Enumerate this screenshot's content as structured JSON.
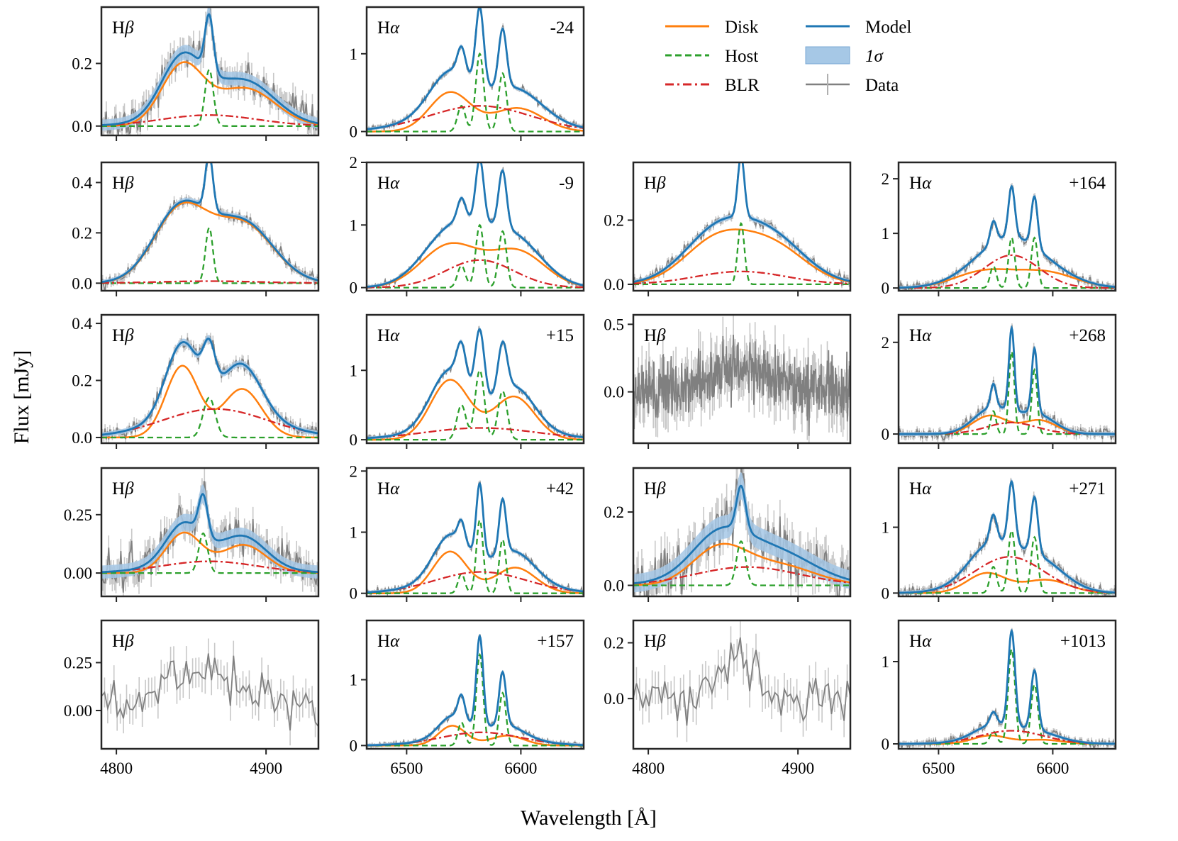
{
  "figure": {
    "ylabel": "Flux [mJy]",
    "xlabel": "Wavelength [Å]"
  },
  "legend": {
    "entries": [
      {
        "key": "disk",
        "label": "Disk",
        "color": "#ff7f0e",
        "style": "solid"
      },
      {
        "key": "host",
        "label": "Host",
        "color": "#2ca02c",
        "style": "dashed"
      },
      {
        "key": "blr",
        "label": "BLR",
        "color": "#d62728",
        "style": "dashdot"
      },
      {
        "key": "model",
        "label": "Model",
        "color": "#1f77b4",
        "style": "solid"
      },
      {
        "key": "sigma",
        "label": "1σ",
        "color": "#a6c8e6",
        "style": "band"
      },
      {
        "key": "data",
        "label": "Data",
        "color": "#808080",
        "style": "errorbar"
      }
    ]
  },
  "chart_data": {
    "type": "line",
    "description": "Grid of spectral fits of H-beta and H-alpha emission lines at several epochs",
    "hb_xrange": [
      4790,
      4935
    ],
    "ha_xrange": [
      6465,
      6655
    ],
    "hb_xticks": [
      4800,
      4900
    ],
    "ha_xticks": [
      6500,
      6600
    ],
    "panels": [
      {
        "id": "hb-1",
        "line": "Hβ",
        "epoch": "",
        "row": 0,
        "col": 0,
        "ylim": [
          -0.03,
          0.38
        ],
        "yticks": [
          "0.0",
          "0.2"
        ],
        "yvals": [
          0,
          0.2
        ],
        "data_only": false,
        "noise": 0.025,
        "disk": {
          "peaks": [
            [
              4844,
              0.19,
              14
            ],
            [
              4886,
              0.12,
              20
            ]
          ]
        },
        "host": {
          "peaks": [
            [
              4862,
              0.18,
              2.8
            ]
          ]
        },
        "blr": {
          "peaks": [
            [
              4862,
              0.035,
              32
            ]
          ]
        }
      },
      {
        "id": "ha-1",
        "line": "Hα",
        "epoch": "-24",
        "row": 0,
        "col": 1,
        "ylim": [
          -0.05,
          1.6
        ],
        "yticks": [
          "0",
          "1"
        ],
        "yvals": [
          0,
          1
        ],
        "data_only": false,
        "noise": 0.02,
        "disk": {
          "peaks": [
            [
              6538,
              0.5,
              18
            ],
            [
              6597,
              0.3,
              22
            ]
          ]
        },
        "host": {
          "peaks": [
            [
              6548,
              0.33,
              3.5
            ],
            [
              6564,
              1.0,
              3.5
            ],
            [
              6584,
              0.75,
              3.5
            ]
          ]
        },
        "blr": {
          "peaks": [
            [
              6564,
              0.33,
              45
            ]
          ]
        }
      },
      {
        "id": "hb-2",
        "line": "Hβ",
        "epoch": "",
        "row": 1,
        "col": 0,
        "ylim": [
          -0.03,
          0.48
        ],
        "yticks": [
          "0.0",
          "0.2",
          "0.4"
        ],
        "yvals": [
          0,
          0.2,
          0.4
        ],
        "data_only": false,
        "noise": 0.012,
        "disk": {
          "peaks": [
            [
              4843,
              0.29,
              18
            ],
            [
              4885,
              0.23,
              20
            ]
          ]
        },
        "host": {
          "peaks": [
            [
              4862,
              0.22,
              2.5
            ]
          ]
        },
        "blr": {
          "peaks": [
            [
              4862,
              0.008,
              35
            ]
          ]
        }
      },
      {
        "id": "ha-2",
        "line": "Hα",
        "epoch": "-9",
        "row": 1,
        "col": 1,
        "ylim": [
          -0.05,
          2.0
        ],
        "yticks": [
          "0",
          "1",
          "2"
        ],
        "yvals": [
          0,
          1,
          2
        ],
        "data_only": false,
        "noise": 0.02,
        "disk": {
          "peaks": [
            [
              6538,
              0.68,
              25
            ],
            [
              6597,
              0.57,
              24
            ]
          ]
        },
        "host": {
          "peaks": [
            [
              6548,
              0.35,
              3.5
            ],
            [
              6564,
              1.0,
              3.5
            ],
            [
              6584,
              0.9,
              3.5
            ]
          ]
        },
        "blr": {
          "peaks": [
            [
              6564,
              0.44,
              30
            ]
          ]
        }
      },
      {
        "id": "hb-3",
        "line": "Hβ",
        "epoch": "",
        "row": 1,
        "col": 2,
        "ylim": [
          -0.02,
          0.38
        ],
        "yticks": [
          "0.0",
          "0.2"
        ],
        "yvals": [
          0,
          0.2
        ],
        "data_only": false,
        "noise": 0.008,
        "disk": {
          "peaks": [
            [
              4846,
              0.135,
              22
            ],
            [
              4884,
              0.11,
              22
            ]
          ]
        },
        "host": {
          "peaks": [
            [
              4862,
              0.19,
              2.2
            ]
          ]
        },
        "blr": {
          "peaks": [
            [
              4862,
              0.04,
              30
            ]
          ]
        }
      },
      {
        "id": "ha-3",
        "line": "Hα",
        "epoch": "+164",
        "row": 1,
        "col": 3,
        "ylim": [
          -0.05,
          2.3
        ],
        "yticks": [
          "0",
          "1",
          "2"
        ],
        "yvals": [
          0,
          1,
          2
        ],
        "data_only": false,
        "noise": 0.04,
        "disk": {
          "peaks": [
            [
              6540,
              0.3,
              26
            ],
            [
              6594,
              0.28,
              26
            ]
          ]
        },
        "host": {
          "peaks": [
            [
              6548,
              0.4,
              2.8
            ],
            [
              6564,
              0.92,
              2.8
            ],
            [
              6584,
              0.92,
              2.8
            ]
          ]
        },
        "blr": {
          "peaks": [
            [
              6564,
              0.6,
              24
            ]
          ]
        }
      },
      {
        "id": "hb-4",
        "line": "Hβ",
        "epoch": "",
        "row": 2,
        "col": 0,
        "ylim": [
          -0.02,
          0.43
        ],
        "yticks": [
          "0.0",
          "0.2",
          "0.4"
        ],
        "yvals": [
          0,
          0.2,
          0.4
        ],
        "data_only": false,
        "noise": 0.012,
        "disk": {
          "peaks": [
            [
              4844,
              0.25,
              11
            ],
            [
              4884,
              0.17,
              13
            ]
          ]
        },
        "host": {
          "peaks": [
            [
              4862,
              0.14,
              4
            ]
          ]
        },
        "blr": {
          "peaks": [
            [
              4866,
              0.1,
              35
            ]
          ]
        }
      },
      {
        "id": "ha-4",
        "line": "Hα",
        "epoch": "+15",
        "row": 2,
        "col": 1,
        "ylim": [
          -0.05,
          1.8
        ],
        "yticks": [
          "0",
          "1"
        ],
        "yvals": [
          0,
          1
        ],
        "data_only": false,
        "noise": 0.02,
        "disk": {
          "peaks": [
            [
              6538,
              0.86,
              17
            ],
            [
              6594,
              0.62,
              18
            ]
          ]
        },
        "host": {
          "peaks": [
            [
              6548,
              0.5,
              4
            ],
            [
              6564,
              1.0,
              4
            ],
            [
              6584,
              0.7,
              4
            ]
          ]
        },
        "blr": {
          "peaks": [
            [
              6565,
              0.17,
              50
            ]
          ]
        }
      },
      {
        "id": "hb-5",
        "line": "Hβ",
        "epoch": "",
        "row": 2,
        "col": 2,
        "ylim": [
          -0.38,
          0.57
        ],
        "yticks": [
          "0.0",
          "0.5"
        ],
        "yvals": [
          0,
          0.5
        ],
        "data_only": true,
        "noise": 0.11,
        "points": 500,
        "signal": {
          "peaks": [
            [
              4860,
              0.17,
              20
            ]
          ]
        }
      },
      {
        "id": "ha-5",
        "line": "Hα",
        "epoch": "+268",
        "row": 2,
        "col": 3,
        "ylim": [
          -0.2,
          2.6
        ],
        "yticks": [
          "0",
          "2"
        ],
        "yvals": [
          0,
          2
        ],
        "data_only": false,
        "noise": 0.06,
        "disk": {
          "peaks": [
            [
              6545,
              0.4,
              15
            ],
            [
              6588,
              0.3,
              15
            ]
          ]
        },
        "host": {
          "peaks": [
            [
              6548,
              0.5,
              2.4
            ],
            [
              6564,
              1.8,
              2.4
            ],
            [
              6584,
              1.4,
              2.4
            ]
          ]
        },
        "blr": {
          "peaks": [
            [
              6564,
              0.25,
              22
            ]
          ]
        }
      },
      {
        "id": "hb-6",
        "line": "Hβ",
        "epoch": "",
        "row": 3,
        "col": 0,
        "ylim": [
          -0.1,
          0.45
        ],
        "yticks": [
          "0.00",
          "0.25"
        ],
        "yvals": [
          0,
          0.25
        ],
        "data_only": false,
        "noise": 0.04,
        "disk": {
          "peaks": [
            [
              4845,
              0.17,
              12
            ],
            [
              4885,
              0.12,
              15
            ]
          ]
        },
        "host": {
          "peaks": [
            [
              4858,
              0.17,
              3
            ]
          ]
        },
        "blr": {
          "peaks": [
            [
              4862,
              0.05,
              32
            ]
          ]
        }
      },
      {
        "id": "ha-6",
        "line": "Hα",
        "epoch": "+42",
        "row": 3,
        "col": 1,
        "ylim": [
          -0.05,
          2.05
        ],
        "yticks": [
          "0",
          "1",
          "2"
        ],
        "yvals": [
          0,
          1,
          2
        ],
        "data_only": false,
        "noise": 0.025,
        "disk": {
          "peaks": [
            [
              6538,
              0.68,
              15
            ],
            [
              6595,
              0.42,
              18
            ]
          ]
        },
        "host": {
          "peaks": [
            [
              6548,
              0.32,
              3
            ],
            [
              6564,
              1.2,
              3
            ],
            [
              6584,
              0.88,
              3
            ]
          ]
        },
        "blr": {
          "peaks": [
            [
              6565,
              0.35,
              40
            ]
          ]
        }
      },
      {
        "id": "hb-7",
        "line": "Hβ",
        "epoch": "",
        "row": 3,
        "col": 2,
        "ylim": [
          -0.03,
          0.32
        ],
        "yticks": [
          "0.0",
          "0.2"
        ],
        "yvals": [
          0,
          0.2
        ],
        "data_only": false,
        "noise": 0.035,
        "disk": {
          "peaks": [
            [
              4847,
              0.095,
              18
            ],
            [
              4886,
              0.055,
              25
            ]
          ]
        },
        "host": {
          "peaks": [
            [
              4862,
              0.12,
              3
            ]
          ]
        },
        "blr": {
          "peaks": [
            [
              4866,
              0.05,
              35
            ]
          ]
        }
      },
      {
        "id": "ha-7",
        "line": "Hα",
        "epoch": "+271",
        "row": 3,
        "col": 3,
        "ylim": [
          -0.05,
          1.9
        ],
        "yticks": [
          "0",
          "1"
        ],
        "yvals": [
          0,
          1
        ],
        "data_only": false,
        "noise": 0.04,
        "disk": {
          "peaks": [
            [
              6542,
              0.3,
              17
            ],
            [
              6594,
              0.2,
              20
            ]
          ]
        },
        "host": {
          "peaks": [
            [
              6548,
              0.4,
              3
            ],
            [
              6564,
              0.95,
              3
            ],
            [
              6584,
              0.85,
              3
            ]
          ]
        },
        "blr": {
          "peaks": [
            [
              6562,
              0.55,
              30
            ]
          ]
        }
      },
      {
        "id": "hb-8",
        "line": "Hβ",
        "epoch": "",
        "row": 4,
        "col": 0,
        "ylim": [
          -0.2,
          0.47
        ],
        "yticks": [
          "0.00",
          "0.25"
        ],
        "yvals": [
          0,
          0.25
        ],
        "data_only": true,
        "noise": 0.06,
        "points": 70,
        "signal": {
          "peaks": [
            [
              4858,
              0.2,
              28
            ]
          ]
        }
      },
      {
        "id": "ha-8",
        "line": "Hα",
        "epoch": "+157",
        "row": 4,
        "col": 1,
        "ylim": [
          -0.05,
          1.9
        ],
        "yticks": [
          "0",
          "1"
        ],
        "yvals": [
          0,
          1
        ],
        "data_only": false,
        "noise": 0.02,
        "disk": {
          "peaks": [
            [
              6540,
              0.3,
              12
            ],
            [
              6588,
              0.15,
              15
            ]
          ]
        },
        "host": {
          "peaks": [
            [
              6548,
              0.35,
              3
            ],
            [
              6564,
              1.38,
              3
            ],
            [
              6584,
              0.8,
              3
            ]
          ]
        },
        "blr": {
          "peaks": [
            [
              6565,
              0.2,
              35
            ]
          ]
        }
      },
      {
        "id": "hb-9",
        "line": "Hβ",
        "epoch": "",
        "row": 4,
        "col": 2,
        "ylim": [
          -0.18,
          0.28
        ],
        "yticks": [
          "0.0",
          "0.2"
        ],
        "yvals": [
          0,
          0.2
        ],
        "data_only": true,
        "noise": 0.045,
        "points": 70,
        "signal": {
          "peaks": [
            [
              4862,
              0.13,
              12
            ]
          ]
        }
      },
      {
        "id": "ha-9",
        "line": "Hα",
        "epoch": "+1013",
        "row": 4,
        "col": 3,
        "ylim": [
          -0.06,
          1.5
        ],
        "yticks": [
          "0",
          "1"
        ],
        "yvals": [
          0,
          1
        ],
        "data_only": false,
        "noise": 0.025,
        "disk": {
          "peaks": [
            [
              6545,
              0.1,
              15
            ],
            [
              6590,
              0.05,
              18
            ]
          ]
        },
        "host": {
          "peaks": [
            [
              6548,
              0.15,
              3
            ],
            [
              6564,
              1.15,
              3
            ],
            [
              6584,
              0.72,
              3
            ]
          ]
        },
        "blr": {
          "peaks": [
            [
              6564,
              0.16,
              28
            ]
          ]
        }
      }
    ]
  }
}
